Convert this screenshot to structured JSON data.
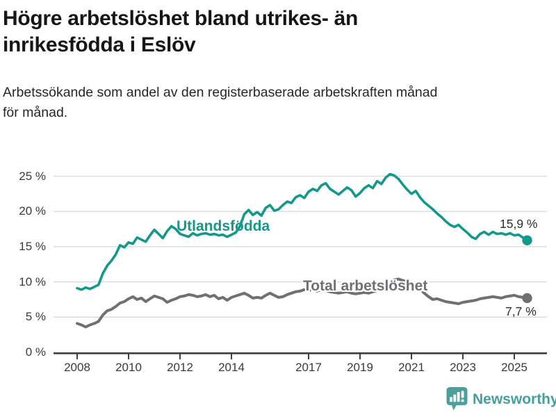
{
  "header": {
    "title_line1": "Högre arbetslöshet bland utrikes- än",
    "title_line2": "inrikesfödda i Eslöv",
    "subtitle_line1": "Arbetssökande som andel av den registerbaserade arbetskraften månad",
    "subtitle_line2": "för månad."
  },
  "footer": {
    "brand": "Newsworthy",
    "brand_color": "#44A09A"
  },
  "colors": {
    "utlandsfodda_line": "#13998C",
    "total_line": "#6F6F74",
    "gridline": "#D9D9D9",
    "axis": "#3F3F3F",
    "text": "#262626"
  },
  "chart_data": {
    "type": "line",
    "title": "Högre arbetslöshet bland utrikes- än inrikesfödda i Eslöv",
    "subtitle": "Arbetssökande som andel av den registerbaserade arbetskraften månad för månad.",
    "unit": "%",
    "x_start_year": 2008,
    "x_end_year": 2025.5,
    "step_months": 2,
    "ylim": [
      0,
      26
    ],
    "grid": "horizontal",
    "legend_position": "inline-labels",
    "yticks": [
      {
        "label": "0 %",
        "value": 0
      },
      {
        "label": "5 %",
        "value": 5
      },
      {
        "label": "10 %",
        "value": 10
      },
      {
        "label": "15 %",
        "value": 15
      },
      {
        "label": "20 %",
        "value": 20
      },
      {
        "label": "25 %",
        "value": 25
      }
    ],
    "xticks": [
      {
        "label": "2008",
        "year": 2008
      },
      {
        "label": "2010",
        "year": 2010
      },
      {
        "label": "2012",
        "year": 2012
      },
      {
        "label": "2014",
        "year": 2014
      },
      {
        "label": "2017",
        "year": 2017
      },
      {
        "label": "2019",
        "year": 2019
      },
      {
        "label": "2021",
        "year": 2021
      },
      {
        "label": "2023",
        "year": 2023
      },
      {
        "label": "2025",
        "year": 2025
      }
    ],
    "series": [
      {
        "name": "Utlandsfödda",
        "color": "#13998C",
        "end_label": "15,9 %",
        "end_value": 15.9,
        "values": [
          9.1,
          8.9,
          9.2,
          9.0,
          9.3,
          9.6,
          11.2,
          12.3,
          13.0,
          13.9,
          15.2,
          14.9,
          15.6,
          15.4,
          16.3,
          16.0,
          15.7,
          16.6,
          17.4,
          16.8,
          16.2,
          17.2,
          17.9,
          17.5,
          16.8,
          16.6,
          16.4,
          16.9,
          16.6,
          16.8,
          16.9,
          16.7,
          16.8,
          16.6,
          16.7,
          16.4,
          16.7,
          17.0,
          17.9,
          19.6,
          20.2,
          19.5,
          19.9,
          19.4,
          20.5,
          20.9,
          20.1,
          20.3,
          20.9,
          21.4,
          21.2,
          22.0,
          22.3,
          21.9,
          22.8,
          23.2,
          22.9,
          23.7,
          24.0,
          23.2,
          22.8,
          22.4,
          22.9,
          23.4,
          23.0,
          22.1,
          22.6,
          23.3,
          23.7,
          23.3,
          24.3,
          23.9,
          24.8,
          25.3,
          25.1,
          24.6,
          23.8,
          23.1,
          22.5,
          22.9,
          22.0,
          21.3,
          20.8,
          20.3,
          19.7,
          19.2,
          18.6,
          18.1,
          17.8,
          18.1,
          17.5,
          17.0,
          16.4,
          16.1,
          16.8,
          17.1,
          16.7,
          17.1,
          16.8,
          16.9,
          16.7,
          16.9,
          16.6,
          16.7,
          16.3,
          15.9
        ]
      },
      {
        "name": "Total arbetslöshet",
        "color": "#6F6F74",
        "end_label": "7,7 %",
        "end_value": 7.7,
        "values": [
          4.1,
          3.9,
          3.6,
          3.9,
          4.1,
          4.4,
          5.3,
          5.9,
          6.1,
          6.5,
          7.0,
          7.2,
          7.6,
          7.9,
          7.5,
          7.7,
          7.2,
          7.6,
          8.0,
          7.8,
          7.6,
          7.1,
          7.4,
          7.6,
          7.9,
          8.0,
          8.2,
          8.1,
          7.9,
          8.0,
          8.2,
          7.9,
          8.1,
          7.6,
          7.8,
          7.4,
          7.8,
          8.0,
          8.2,
          8.4,
          8.1,
          7.7,
          7.8,
          7.7,
          8.1,
          8.4,
          8.1,
          7.8,
          7.9,
          8.2,
          8.4,
          8.6,
          8.7,
          8.9,
          8.8,
          8.9,
          8.7,
          8.9,
          8.8,
          8.6,
          8.5,
          8.4,
          8.5,
          8.6,
          8.4,
          8.3,
          8.4,
          8.5,
          8.4,
          8.6,
          8.8,
          9.0,
          9.2,
          9.9,
          10.3,
          10.4,
          10.2,
          10.0,
          9.8,
          9.5,
          9.0,
          8.4,
          7.9,
          7.5,
          7.6,
          7.4,
          7.2,
          7.1,
          7.0,
          6.9,
          7.1,
          7.2,
          7.3,
          7.4,
          7.6,
          7.7,
          7.8,
          7.9,
          7.8,
          7.7,
          7.9,
          8.0,
          8.1,
          7.9,
          7.8,
          7.7
        ]
      }
    ]
  }
}
